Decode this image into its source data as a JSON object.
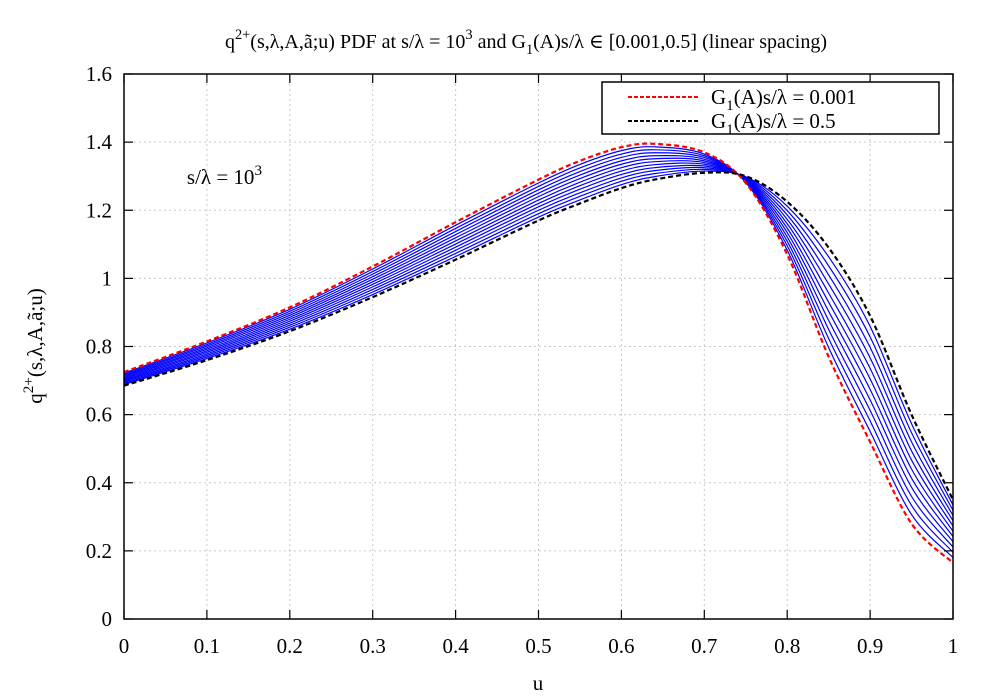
{
  "chart_data": {
    "type": "line",
    "title_parts": [
      {
        "t": "q",
        "s": ""
      },
      {
        "t": "2+",
        "s": "sup"
      },
      {
        "t": "(s,λ,A,ã;u) PDF at s/λ = 10",
        "s": ""
      },
      {
        "t": "3",
        "s": "sup"
      },
      {
        "t": " and G",
        "s": ""
      },
      {
        "t": "1",
        "s": "sub"
      },
      {
        "t": "(A)s/λ ∈  [0.001,0.5] (linear spacing)",
        "s": ""
      }
    ],
    "xlabel": "u",
    "ylabel_parts": [
      {
        "t": "q",
        "s": ""
      },
      {
        "t": "2+",
        "s": "sup"
      },
      {
        "t": "(s,λ,A,ã;u)",
        "s": ""
      }
    ],
    "xlim": [
      0,
      1
    ],
    "ylim": [
      0,
      1.6
    ],
    "xticks": [
      "0",
      "0.1",
      "0.2",
      "0.3",
      "0.4",
      "0.5",
      "0.6",
      "0.7",
      "0.8",
      "0.9",
      "1"
    ],
    "yticks": [
      "0",
      "0.2",
      "0.4",
      "0.6",
      "0.8",
      "1",
      "1.2",
      "1.4",
      "1.6"
    ],
    "grid": true,
    "legend_position": "top-right",
    "annotation": {
      "parts": [
        {
          "t": "s/λ = 10",
          "s": ""
        },
        {
          "t": "3",
          "s": "sup"
        }
      ],
      "u": 0.1,
      "y": 1.3
    },
    "series": [
      {
        "name_parts": [
          {
            "t": "G",
            "s": ""
          },
          {
            "t": "1",
            "s": "sub"
          },
          {
            "t": "(A)s/λ = 0.001",
            "s": ""
          }
        ],
        "color": "#ff0000",
        "style": "dashed",
        "x": [
          0,
          0.1,
          0.2,
          0.3,
          0.4,
          0.5,
          0.55,
          0.6,
          0.64,
          0.7,
          0.75,
          0.8,
          0.85,
          0.9,
          0.95,
          1.0
        ],
        "y": [
          0.725,
          0.815,
          0.915,
          1.035,
          1.165,
          1.29,
          1.345,
          1.385,
          1.395,
          1.37,
          1.28,
          1.07,
          0.77,
          0.52,
          0.28,
          0.165
        ]
      },
      {
        "name_parts": [
          {
            "t": "G",
            "s": ""
          },
          {
            "t": "1",
            "s": "sub"
          },
          {
            "t": "(A)s/λ = 0.5",
            "s": ""
          }
        ],
        "color": "#000000",
        "style": "dashed",
        "x": [
          0,
          0.1,
          0.2,
          0.3,
          0.4,
          0.5,
          0.55,
          0.6,
          0.64,
          0.7,
          0.75,
          0.8,
          0.85,
          0.9,
          0.95,
          1.0
        ],
        "y": [
          0.685,
          0.76,
          0.845,
          0.945,
          1.055,
          1.17,
          1.22,
          1.265,
          1.29,
          1.31,
          1.3,
          1.225,
          1.09,
          0.89,
          0.6,
          0.35
        ]
      }
    ],
    "intermediate_series": {
      "color": "#0000ff",
      "style": "solid",
      "count": 11
    }
  }
}
